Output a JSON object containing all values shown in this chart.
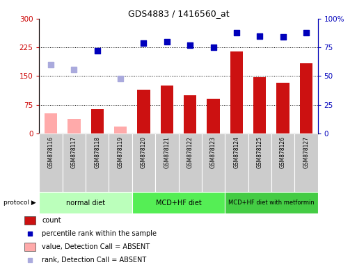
{
  "title": "GDS4883 / 1416560_at",
  "samples": [
    "GSM878116",
    "GSM878117",
    "GSM878118",
    "GSM878119",
    "GSM878120",
    "GSM878121",
    "GSM878122",
    "GSM878123",
    "GSM878124",
    "GSM878125",
    "GSM878126",
    "GSM878127"
  ],
  "absent": [
    true,
    true,
    false,
    true,
    false,
    false,
    false,
    false,
    false,
    false,
    false,
    false
  ],
  "count_values": [
    52,
    38,
    63,
    18,
    115,
    125,
    100,
    90,
    215,
    148,
    133,
    183
  ],
  "percentile_values": [
    60,
    56,
    72,
    48,
    79,
    80,
    77,
    75,
    88,
    85,
    84,
    88
  ],
  "left_ylim": [
    0,
    300
  ],
  "right_ylim": [
    0,
    100
  ],
  "left_yticks": [
    0,
    75,
    150,
    225,
    300
  ],
  "right_yticks": [
    0,
    25,
    50,
    75,
    100
  ],
  "right_yticklabels": [
    "0",
    "25",
    "50",
    "75",
    "100%"
  ],
  "groups": [
    {
      "label": "normal diet",
      "start": 0,
      "end": 3,
      "color": "#bbffbb"
    },
    {
      "label": "MCD+HF diet",
      "start": 4,
      "end": 7,
      "color": "#55ee55"
    },
    {
      "label": "MCD+HF diet with metformin",
      "start": 8,
      "end": 11,
      "color": "#44cc44"
    }
  ],
  "bar_color_present": "#cc1111",
  "bar_color_absent": "#ffaaaa",
  "dot_color_present": "#0000bb",
  "dot_color_absent": "#aaaadd",
  "bg_color": "#ffffff",
  "plot_bg": "#ffffff",
  "legend_items": [
    {
      "label": "count",
      "color": "#cc1111",
      "type": "bar"
    },
    {
      "label": "percentile rank within the sample",
      "color": "#0000bb",
      "type": "dot"
    },
    {
      "label": "value, Detection Call = ABSENT",
      "color": "#ffaaaa",
      "type": "bar"
    },
    {
      "label": "rank, Detection Call = ABSENT",
      "color": "#aaaadd",
      "type": "dot"
    }
  ],
  "hlines": [
    75,
    150,
    225
  ]
}
